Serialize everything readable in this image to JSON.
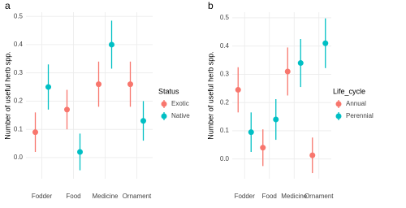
{
  "chart_data": [
    {
      "type": "errorbar",
      "panel_label": "a",
      "y_label": "Number of useful herb spp.",
      "legend_title": "Status",
      "categories": [
        "Fodder",
        "Food",
        "Medicine",
        "Ornament"
      ],
      "series": [
        {
          "name": "Exotic",
          "color": "#F8766D",
          "values": [
            0.09,
            0.17,
            0.26,
            0.26
          ],
          "errors": [
            0.07,
            0.07,
            0.08,
            0.08
          ]
        },
        {
          "name": "Native",
          "color": "#00BFC4",
          "values": [
            0.25,
            0.02,
            0.4,
            0.13
          ],
          "errors": [
            0.08,
            0.065,
            0.085,
            0.07
          ]
        }
      ],
      "ylim": [
        -0.075,
        0.515
      ],
      "yticks": [
        {
          "value": 0,
          "label": "0.0"
        },
        0.1,
        0.2,
        0.3,
        0.4,
        0.5
      ],
      "grid": true,
      "legend": "right"
    },
    {
      "type": "errorbar",
      "panel_label": "b",
      "y_label": "Number of useful herb spp.",
      "legend_title": "Life_cycle",
      "categories": [
        "Fodder",
        "Food",
        "Medicine",
        "Ornament"
      ],
      "series": [
        {
          "name": "Annual",
          "color": "#F8766D",
          "values": [
            0.245,
            0.04,
            0.31,
            0.013
          ],
          "errors": [
            0.08,
            0.065,
            0.085,
            0.063
          ]
        },
        {
          "name": "Perennial",
          "color": "#00BFC4",
          "values": [
            0.095,
            0.14,
            0.34,
            0.41
          ],
          "errors": [
            0.07,
            0.072,
            0.085,
            0.088
          ]
        }
      ],
      "ylim": [
        -0.07,
        0.52
      ],
      "yticks": [
        {
          "value": 0,
          "label": "0.0"
        },
        0.1,
        0.2,
        0.3,
        0.4,
        0.5
      ],
      "grid": true,
      "legend": "right"
    }
  ]
}
